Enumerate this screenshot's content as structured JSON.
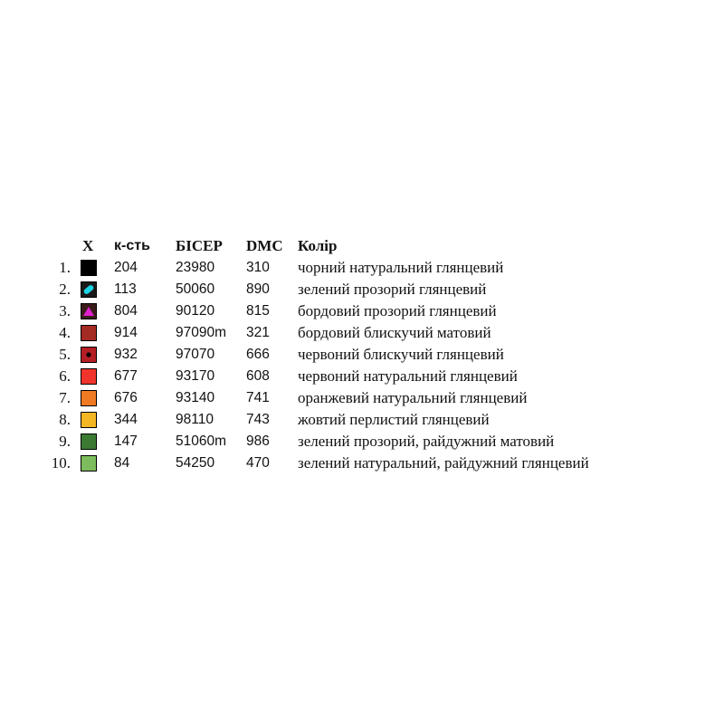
{
  "header": {
    "symbol": "X",
    "quantity": "к-сть",
    "beads": "БІСЕР",
    "dmc": "DMC",
    "color": "Колір"
  },
  "rows": [
    {
      "num": "1.",
      "swatch": "#000000",
      "symbol": "none",
      "qty": "204",
      "bead": "23980",
      "dmc": "310",
      "color": "чорний натуральний глянцевий"
    },
    {
      "num": "2.",
      "swatch": "#1a1a1a",
      "symbol": "cyan-pill-icon",
      "qty": "113",
      "bead": "50060",
      "dmc": "890",
      "color": "зелений прозорий глянцевий"
    },
    {
      "num": "3.",
      "swatch": "#3a1a1a",
      "symbol": "magenta-triangle-icon",
      "qty": "804",
      "bead": "90120",
      "dmc": "815",
      "color": "бордовий прозорий глянцевий"
    },
    {
      "num": "4.",
      "swatch": "#a42a24",
      "symbol": "none",
      "qty": "914",
      "bead": "97090m",
      "dmc": "321",
      "color": "бордовий блискучий матовий"
    },
    {
      "num": "5.",
      "swatch": "#b41e24",
      "symbol": "black-dot-icon",
      "qty": "932",
      "bead": "97070",
      "dmc": "666",
      "color": "червоний блискучий глянцевий"
    },
    {
      "num": "6.",
      "swatch": "#f0342c",
      "symbol": "none",
      "qty": "677",
      "bead": "93170",
      "dmc": "608",
      "color": "червоний натуральний глянцевий"
    },
    {
      "num": "7.",
      "swatch": "#f07a24",
      "symbol": "none",
      "qty": "676",
      "bead": "93140",
      "dmc": "741",
      "color": "оранжевий  натуральний глянцевий"
    },
    {
      "num": "8.",
      "swatch": "#f5b624",
      "symbol": "none",
      "qty": "344",
      "bead": "98110",
      "dmc": "743",
      "color": "жовтий перлистий глянцевий"
    },
    {
      "num": "9.",
      "swatch": "#3c7a34",
      "symbol": "none",
      "qty": "147",
      "bead": "51060m",
      "dmc": "986",
      "color": "зелений прозорий, райдужний матовий"
    },
    {
      "num": "10.",
      "swatch": "#7cbc5c",
      "symbol": "none",
      "qty": "84",
      "bead": "54250",
      "dmc": "470",
      "color": "зелений натуральний, райдужний глянцевий"
    }
  ]
}
